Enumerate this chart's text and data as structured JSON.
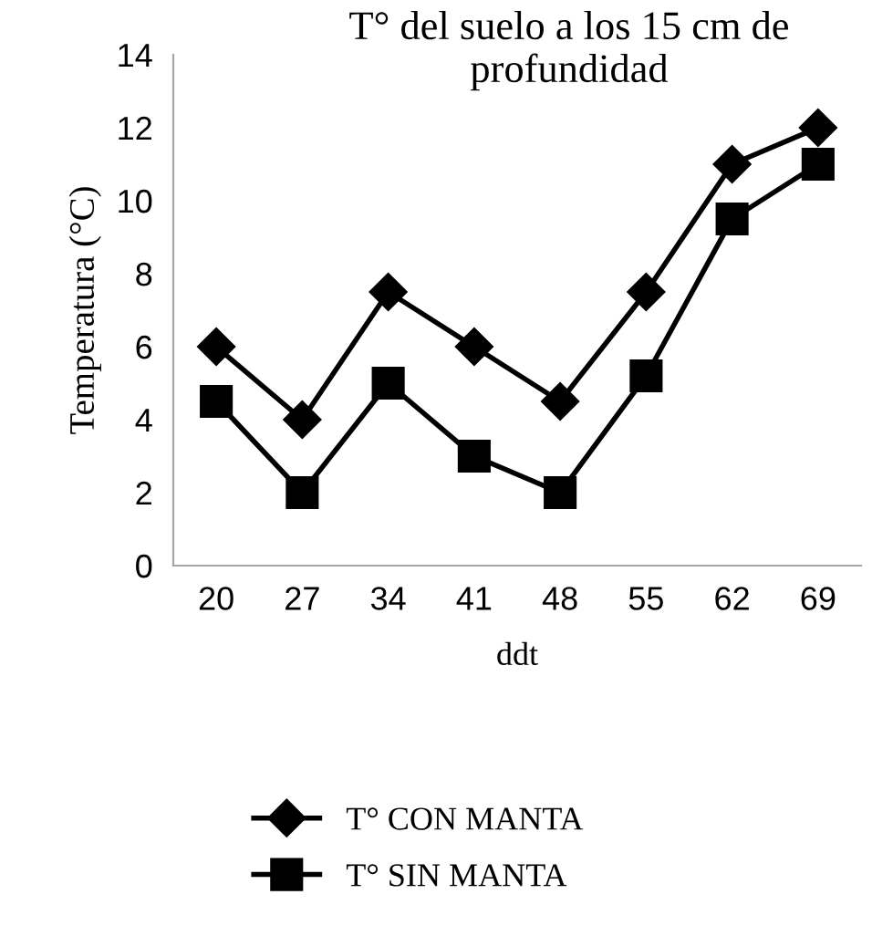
{
  "chart_data": {
    "type": "line",
    "title": "T° del suelo a los 15 cm de profundidad",
    "xlabel": "ddt",
    "ylabel": "Temperatura (°C)",
    "categories": [
      "20",
      "27",
      "34",
      "41",
      "48",
      "55",
      "62",
      "69"
    ],
    "series": [
      {
        "name": "T° CON MANTA",
        "color": "#000000",
        "marker": "diamond",
        "values": [
          6,
          4,
          7.5,
          6,
          4.5,
          7.5,
          11,
          12
        ]
      },
      {
        "name": "T° SIN MANTA",
        "color": "#000000",
        "marker": "square",
        "values": [
          4.5,
          2,
          5,
          3,
          2,
          5.2,
          9.5,
          11
        ]
      }
    ],
    "ylim": [
      0,
      14
    ],
    "yticks": [
      0,
      2,
      4,
      6,
      8,
      10,
      12,
      14
    ],
    "grid": false,
    "legend": "bottom",
    "line_style": "solid"
  }
}
